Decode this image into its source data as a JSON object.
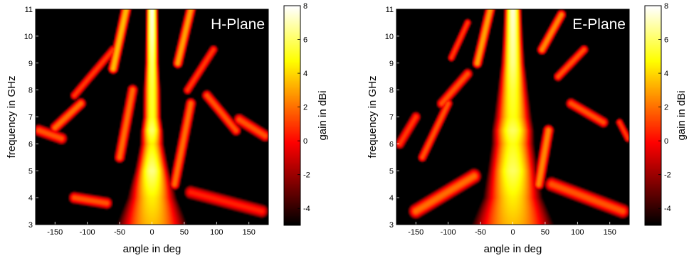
{
  "colormap": {
    "name": "hot",
    "dark": "#000000",
    "mid": "#ff2400",
    "bright": "#ffff30",
    "white": "#ffffff"
  },
  "chart_data": [
    {
      "type": "heatmap",
      "title": "H-Plane",
      "xlabel": "angle in deg",
      "ylabel": "frequency in GHz",
      "colorbar_label": "gain in dBi",
      "xlim": [
        -180,
        180
      ],
      "ylim": [
        3,
        11
      ],
      "clim": [
        -5,
        8
      ],
      "x_ticks": [
        -150,
        -100,
        -50,
        0,
        50,
        100,
        150
      ],
      "y_ticks": [
        3,
        4,
        5,
        6,
        7,
        8,
        9,
        10,
        11
      ],
      "c_ticks": [
        -4,
        -2,
        0,
        2,
        4,
        6,
        8
      ],
      "main_beam_center_deg": 0,
      "main_beam_halfwidth_deg": [
        [
          3,
          60
        ],
        [
          4,
          40
        ],
        [
          5,
          26
        ],
        [
          6,
          20
        ],
        [
          7,
          15
        ],
        [
          8,
          14
        ],
        [
          9,
          11
        ],
        [
          10,
          10
        ],
        [
          11,
          9
        ]
      ],
      "main_beam_peak_dBi": [
        [
          3,
          3.5
        ],
        [
          4,
          4.5
        ],
        [
          5,
          6.5
        ],
        [
          6,
          4.5
        ],
        [
          6.5,
          6.2
        ],
        [
          7,
          5.2
        ],
        [
          8,
          5.5
        ],
        [
          9,
          6.2
        ],
        [
          10,
          7.2
        ],
        [
          11,
          7.8
        ]
      ],
      "side_lobes": [
        {
          "x": [
            -175,
            -140
          ],
          "y": [
            6.5,
            6.2
          ],
          "w": 10,
          "peak": 1.5
        },
        {
          "x": [
            -150,
            -110
          ],
          "y": [
            6.6,
            7.5
          ],
          "w": 9,
          "peak": 2.0
        },
        {
          "x": [
            -120,
            -60
          ],
          "y": [
            7.8,
            9.5
          ],
          "w": 8,
          "peak": 1.0
        },
        {
          "x": [
            -60,
            -40
          ],
          "y": [
            8.8,
            11
          ],
          "w": 8,
          "peak": 3.5
        },
        {
          "x": [
            -50,
            -30
          ],
          "y": [
            5.5,
            8.0
          ],
          "w": 9,
          "peak": 2.0
        },
        {
          "x": [
            -120,
            -70
          ],
          "y": [
            4.0,
            3.8
          ],
          "w": 10,
          "peak": 1.5
        },
        {
          "x": [
            35,
            60
          ],
          "y": [
            4.5,
            7.5
          ],
          "w": 9,
          "peak": 2.0
        },
        {
          "x": [
            55,
            95
          ],
          "y": [
            8.0,
            9.5
          ],
          "w": 8,
          "peak": 1.0
        },
        {
          "x": [
            85,
            130
          ],
          "y": [
            7.8,
            6.5
          ],
          "w": 9,
          "peak": 1.5
        },
        {
          "x": [
            135,
            175
          ],
          "y": [
            6.9,
            6.3
          ],
          "w": 10,
          "peak": 1.5
        },
        {
          "x": [
            40,
            60
          ],
          "y": [
            9.0,
            11
          ],
          "w": 8,
          "peak": 3.0
        },
        {
          "x": [
            60,
            170
          ],
          "y": [
            4.2,
            3.5
          ],
          "w": 12,
          "peak": 0.5
        }
      ]
    },
    {
      "type": "heatmap",
      "title": "E-Plane",
      "xlabel": "angle in deg",
      "ylabel": "frequency in GHz",
      "colorbar_label": "gain in dBi",
      "xlim": [
        -180,
        180
      ],
      "ylim": [
        3,
        11
      ],
      "clim": [
        -5,
        8
      ],
      "x_ticks": [
        -150,
        -100,
        -50,
        0,
        50,
        100,
        150
      ],
      "y_ticks": [
        3,
        4,
        5,
        6,
        7,
        8,
        9,
        10,
        11
      ],
      "c_ticks": [
        -4,
        -2,
        0,
        2,
        4,
        6,
        8
      ],
      "main_beam_center_deg": 0,
      "main_beam_halfwidth_deg": [
        [
          3,
          70
        ],
        [
          4,
          48
        ],
        [
          5,
          38
        ],
        [
          6,
          34
        ],
        [
          7,
          30
        ],
        [
          8,
          24
        ],
        [
          9,
          18
        ],
        [
          10,
          15
        ],
        [
          11,
          13
        ]
      ],
      "main_beam_peak_dBi": [
        [
          3,
          3.5
        ],
        [
          4,
          4.5
        ],
        [
          5,
          6.0
        ],
        [
          6,
          5.0
        ],
        [
          6.5,
          6.0
        ],
        [
          7,
          5.0
        ],
        [
          8,
          5.5
        ],
        [
          9,
          6.5
        ],
        [
          10,
          7.0
        ],
        [
          11,
          7.5
        ]
      ],
      "side_lobes": [
        {
          "x": [
            -175,
            -150
          ],
          "y": [
            6.0,
            7.0
          ],
          "w": 9,
          "peak": 1.0
        },
        {
          "x": [
            -140,
            -100
          ],
          "y": [
            5.5,
            7.5
          ],
          "w": 8,
          "peak": 1.5
        },
        {
          "x": [
            -110,
            -70
          ],
          "y": [
            7.5,
            8.6
          ],
          "w": 9,
          "peak": 1.5
        },
        {
          "x": [
            -95,
            -70
          ],
          "y": [
            9.2,
            10.5
          ],
          "w": 7,
          "peak": 1.0
        },
        {
          "x": [
            -150,
            -60
          ],
          "y": [
            3.5,
            4.8
          ],
          "w": 12,
          "peak": 2.0
        },
        {
          "x": [
            -55,
            -35
          ],
          "y": [
            9.0,
            11
          ],
          "w": 8,
          "peak": 3.0
        },
        {
          "x": [
            45,
            75
          ],
          "y": [
            9.5,
            10.8
          ],
          "w": 8,
          "peak": 2.5
        },
        {
          "x": [
            70,
            110
          ],
          "y": [
            8.5,
            9.5
          ],
          "w": 8,
          "peak": 1.5
        },
        {
          "x": [
            90,
            140
          ],
          "y": [
            7.5,
            6.8
          ],
          "w": 9,
          "peak": 1.5
        },
        {
          "x": [
            165,
            178
          ],
          "y": [
            6.8,
            6.2
          ],
          "w": 7,
          "peak": 1.0
        },
        {
          "x": [
            60,
            170
          ],
          "y": [
            4.5,
            3.5
          ],
          "w": 12,
          "peak": 1.5
        },
        {
          "x": [
            40,
            55
          ],
          "y": [
            4.5,
            6.5
          ],
          "w": 9,
          "peak": 2.5
        }
      ]
    }
  ]
}
